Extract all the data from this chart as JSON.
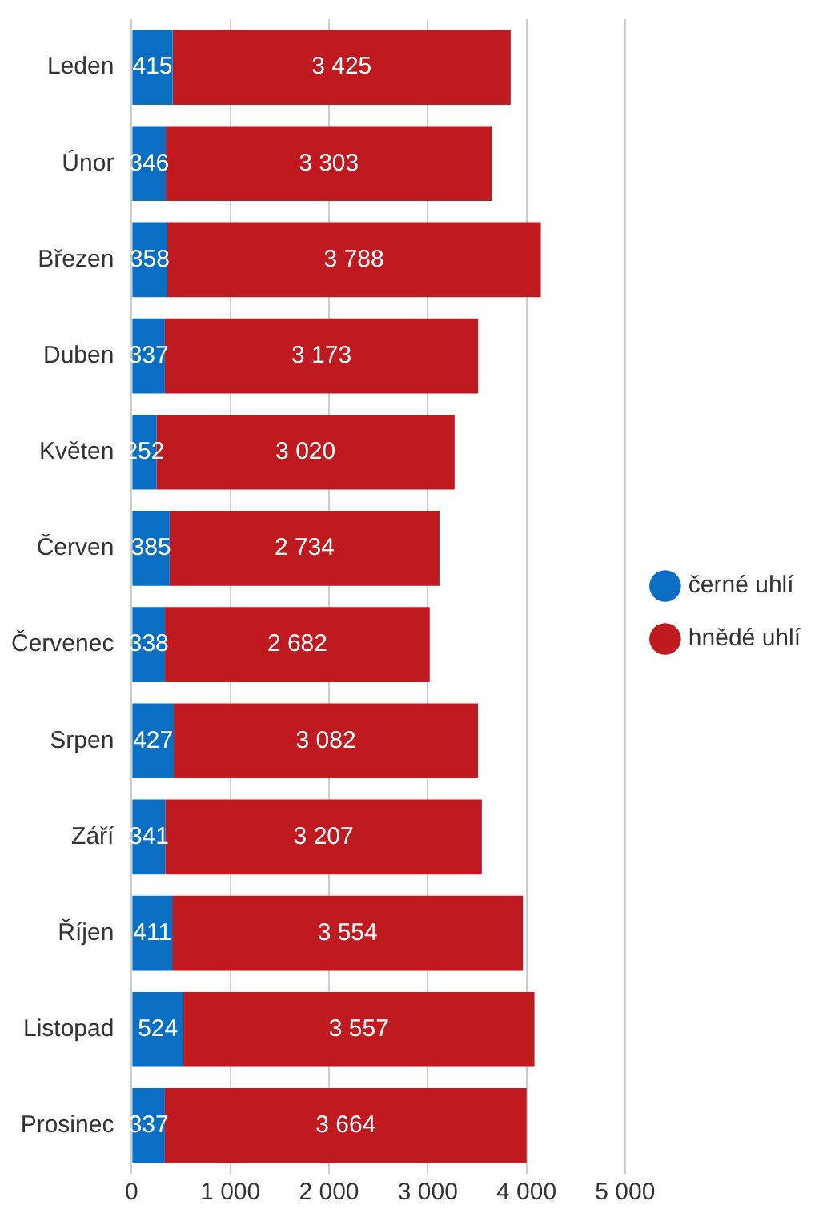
{
  "chart_data": {
    "type": "bar",
    "orientation": "horizontal",
    "stacked": true,
    "categories": [
      "Leden",
      "Únor",
      "Březen",
      "Duben",
      "Květen",
      "Červen",
      "Červenec",
      "Srpen",
      "Září",
      "Říjen",
      "Listopad",
      "Prosinec"
    ],
    "series": [
      {
        "name": "černé uhlí",
        "color": "#0a6fc2",
        "values": [
          415,
          346,
          358,
          337,
          252,
          385,
          338,
          427,
          341,
          411,
          524,
          337
        ],
        "value_labels": [
          "415",
          "346",
          "358",
          "337",
          "252",
          "385",
          "338",
          "427",
          "341",
          "411",
          "524",
          "337"
        ]
      },
      {
        "name": "hnědé uhlí",
        "color": "#bf1a20",
        "values": [
          3425,
          3303,
          3788,
          3173,
          3020,
          2734,
          2682,
          3082,
          3207,
          3554,
          3557,
          3664
        ],
        "value_labels": [
          "3 425",
          "3 303",
          "3 788",
          "3 173",
          "3 020",
          "2 734",
          "2 682",
          "3 082",
          "3 207",
          "3 554",
          "3 557",
          "3 664"
        ]
      }
    ],
    "xlim": [
      0,
      5000
    ],
    "xticks": [
      0,
      {
        "value": 1000,
        "label": "1 000"
      },
      {
        "value": 2000,
        "label": "2 000"
      },
      {
        "value": 3000,
        "label": "3 000"
      },
      {
        "value": 4000,
        "label": "4 000"
      },
      {
        "value": 5000,
        "label": "5 000"
      }
    ],
    "grid": "x",
    "legend": "right"
  }
}
